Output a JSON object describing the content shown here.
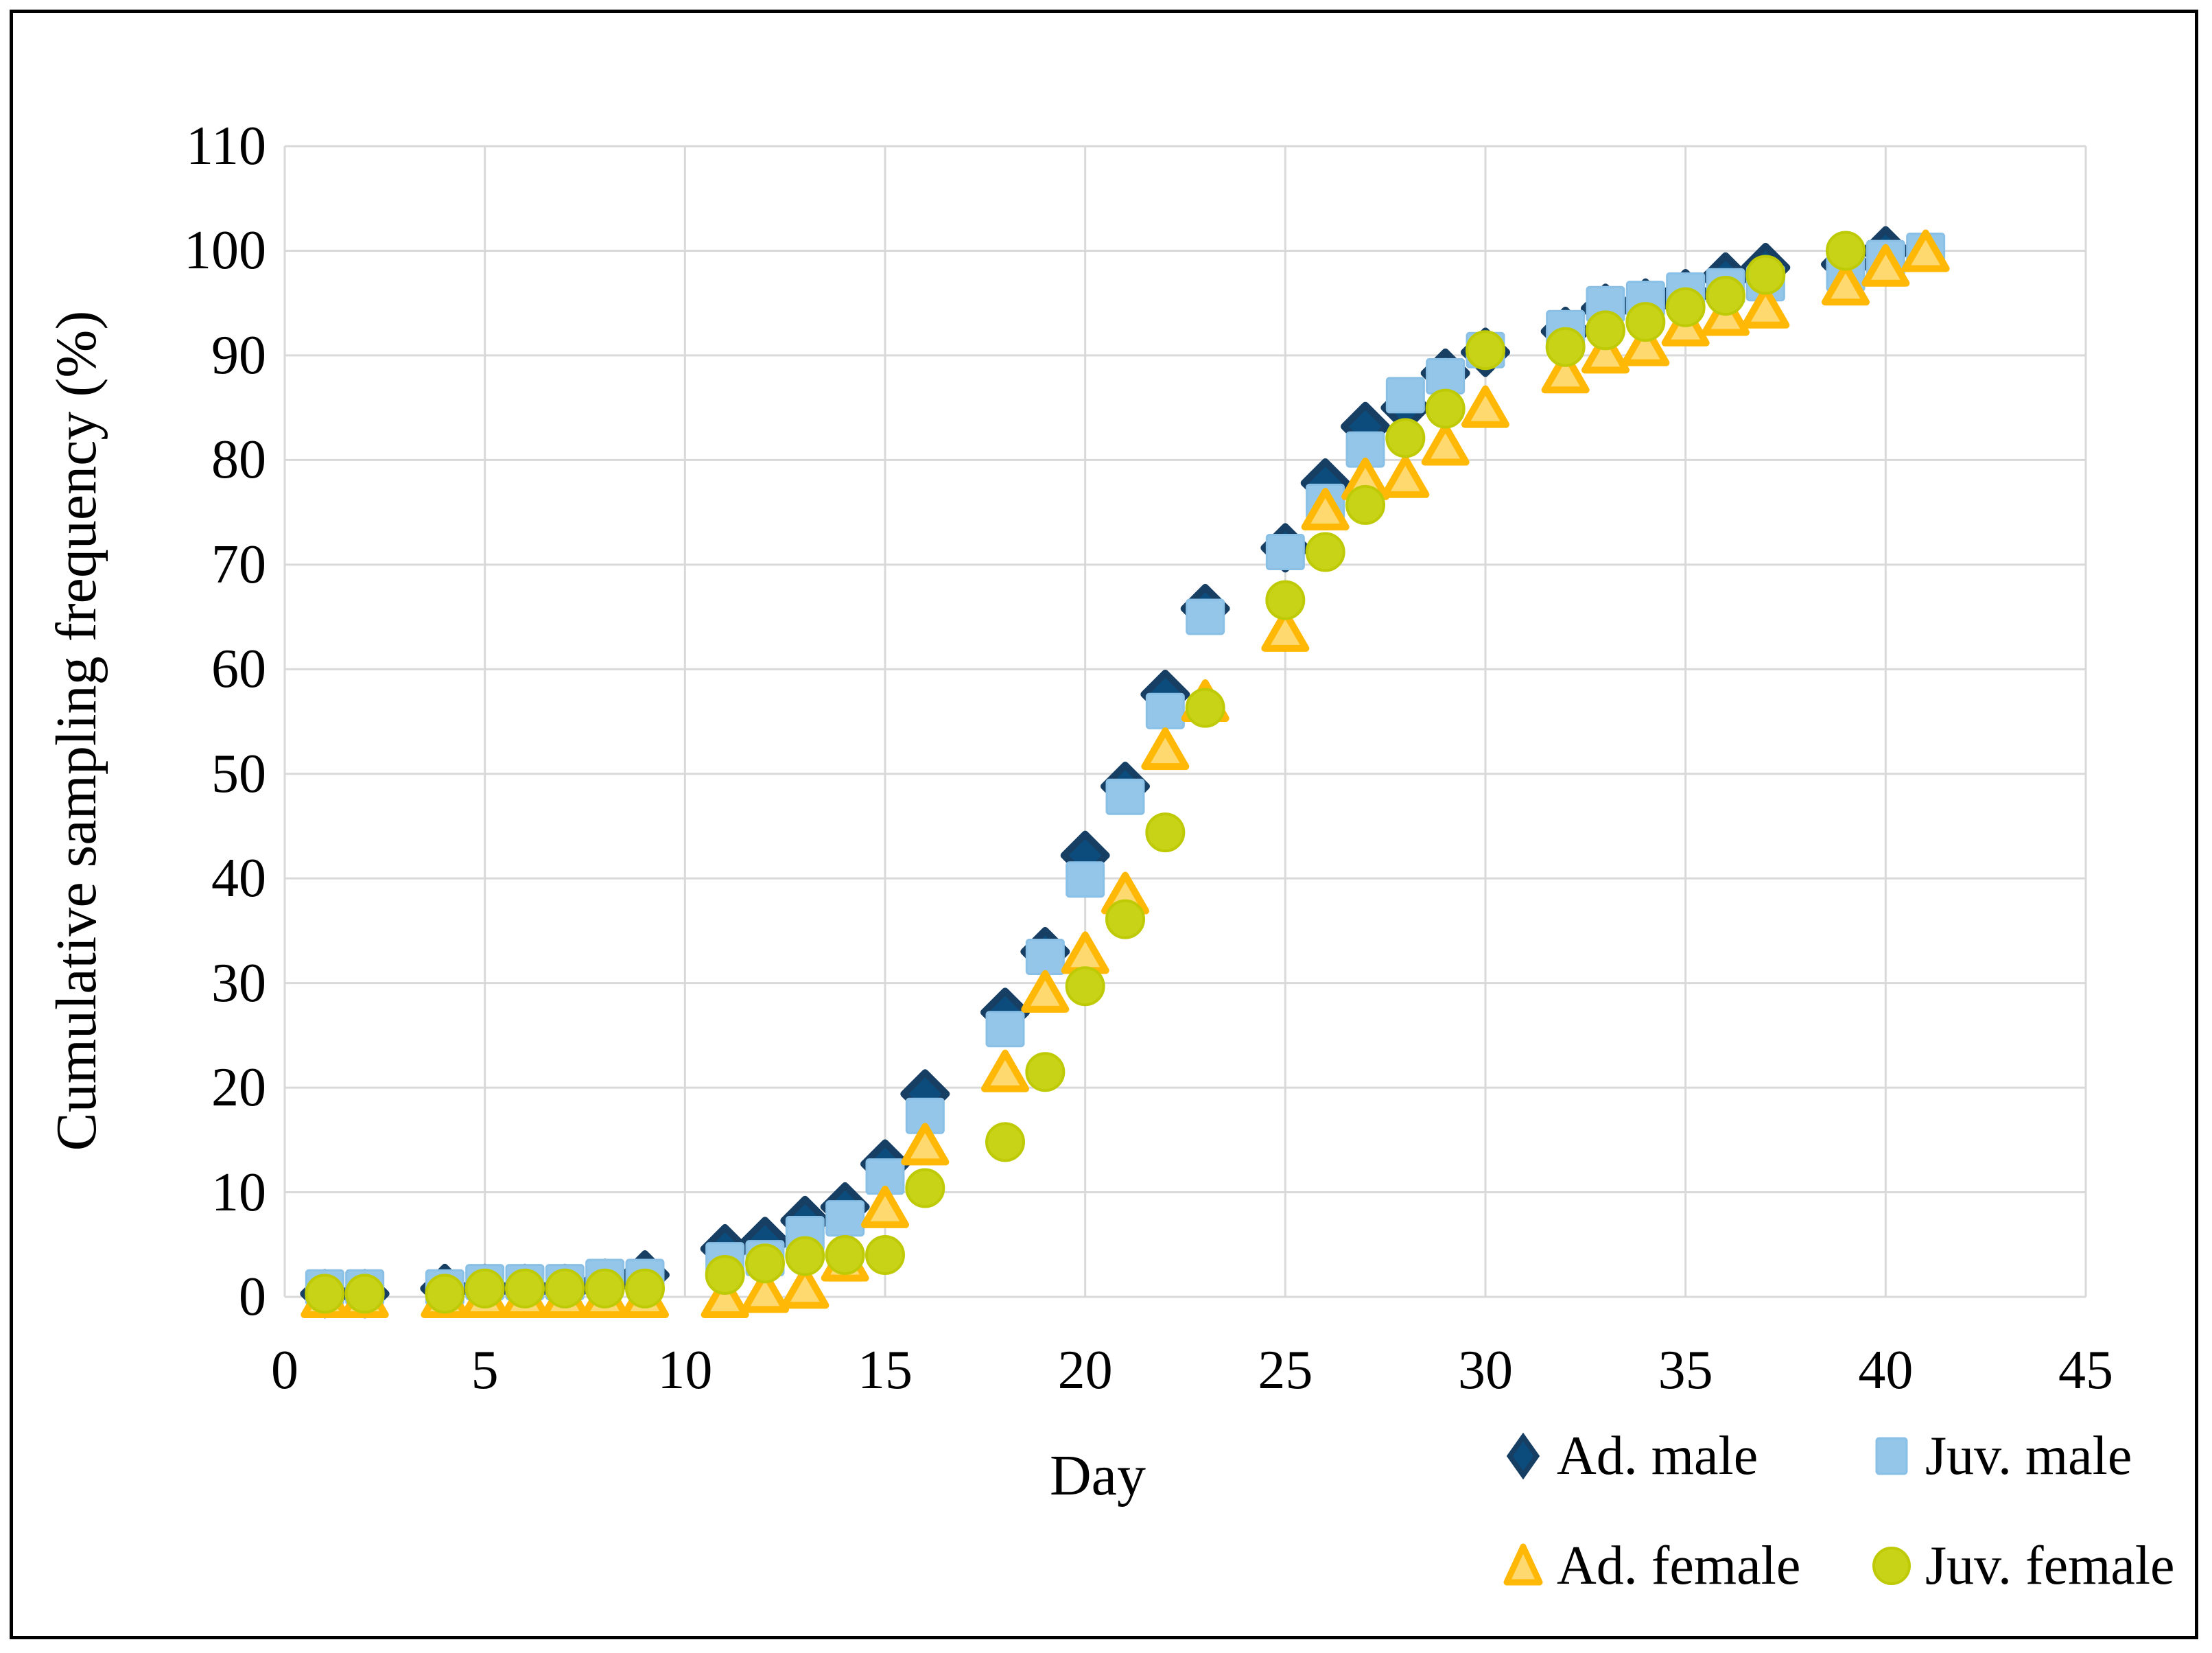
{
  "figure": {
    "background": "#FFFFFF",
    "border_color": "#000000",
    "gridline_color": "#D9D9D9",
    "text_color": "#000000"
  },
  "chart_data": {
    "type": "scatter",
    "title": "",
    "xlabel": "Day",
    "ylabel": "Cumulative sampling frequency (%)",
    "xlim": [
      0,
      45
    ],
    "ylim": [
      0,
      110
    ],
    "x_ticks": [
      0,
      5,
      10,
      15,
      20,
      25,
      30,
      35,
      40,
      45
    ],
    "y_ticks": [
      0,
      10,
      20,
      30,
      40,
      50,
      60,
      70,
      80,
      90,
      100,
      110
    ],
    "grid": true,
    "legend_position": "bottom-right",
    "days": [
      1,
      2,
      4,
      5,
      6,
      7,
      8,
      9,
      11,
      12,
      13,
      14,
      15,
      16,
      18,
      19,
      20,
      21,
      22,
      23,
      25,
      26,
      27,
      28,
      29,
      30,
      32,
      33,
      34,
      35,
      36,
      37,
      39,
      40,
      41
    ],
    "series": [
      {
        "name": "Ad. male",
        "marker": "diamond",
        "fill": "#0C4C7C",
        "stroke": "#173E63",
        "values": [
          0.3,
          0.3,
          0.8,
          0.8,
          0.8,
          0.8,
          1.3,
          2.1,
          4.6,
          5.3,
          7.3,
          8.6,
          12.7,
          19.4,
          27.2,
          33,
          42.2,
          48.8,
          57.6,
          65.8,
          71.6,
          77.8,
          83.2,
          85,
          88.3,
          90.3,
          92.3,
          94.5,
          95,
          95.9,
          97.5,
          98.4,
          98.7,
          100,
          null
        ]
      },
      {
        "name": "Juv. male",
        "marker": "square",
        "fill": "#93C6E9",
        "stroke": "#8AC0E6",
        "values": [
          0.9,
          0.9,
          0.9,
          1.4,
          1.4,
          1.4,
          1.9,
          1.9,
          3.5,
          3.7,
          6,
          7.5,
          11.5,
          17.3,
          25.6,
          32.5,
          39.9,
          47.8,
          56,
          65,
          71.2,
          76,
          81,
          86.2,
          88,
          90.5,
          92.6,
          94.9,
          95.4,
          96.2,
          96.6,
          96.9,
          97.8,
          99.3,
          100
        ]
      },
      {
        "name": "Ad. female",
        "marker": "triangle",
        "fill": "#FED970",
        "stroke": "#FFB805",
        "values": [
          0,
          0,
          0,
          0,
          0,
          0,
          0,
          0,
          0,
          0.5,
          0.9,
          3.5,
          8.6,
          14.6,
          21.6,
          29.2,
          32.9,
          38.6,
          52.4,
          57,
          63.7,
          75.3,
          78.2,
          78.4,
          81.5,
          85.1,
          88.4,
          90.3,
          91,
          92.9,
          93.9,
          94.6,
          96.8,
          98.6,
          100
        ]
      },
      {
        "name": "Juv. female",
        "marker": "circle",
        "fill": "#C8D217",
        "stroke": "#BFCA06",
        "values": [
          0.3,
          0.3,
          0.3,
          0.8,
          0.8,
          0.8,
          0.8,
          0.8,
          2.1,
          3.2,
          3.9,
          4,
          4,
          10.4,
          14.8,
          21.5,
          29.7,
          36.1,
          44.4,
          56.3,
          66.6,
          71.2,
          75.7,
          82.1,
          84.9,
          90.5,
          90.8,
          92.4,
          93.2,
          94.6,
          95.7,
          97.7,
          100,
          null,
          null
        ]
      }
    ]
  }
}
